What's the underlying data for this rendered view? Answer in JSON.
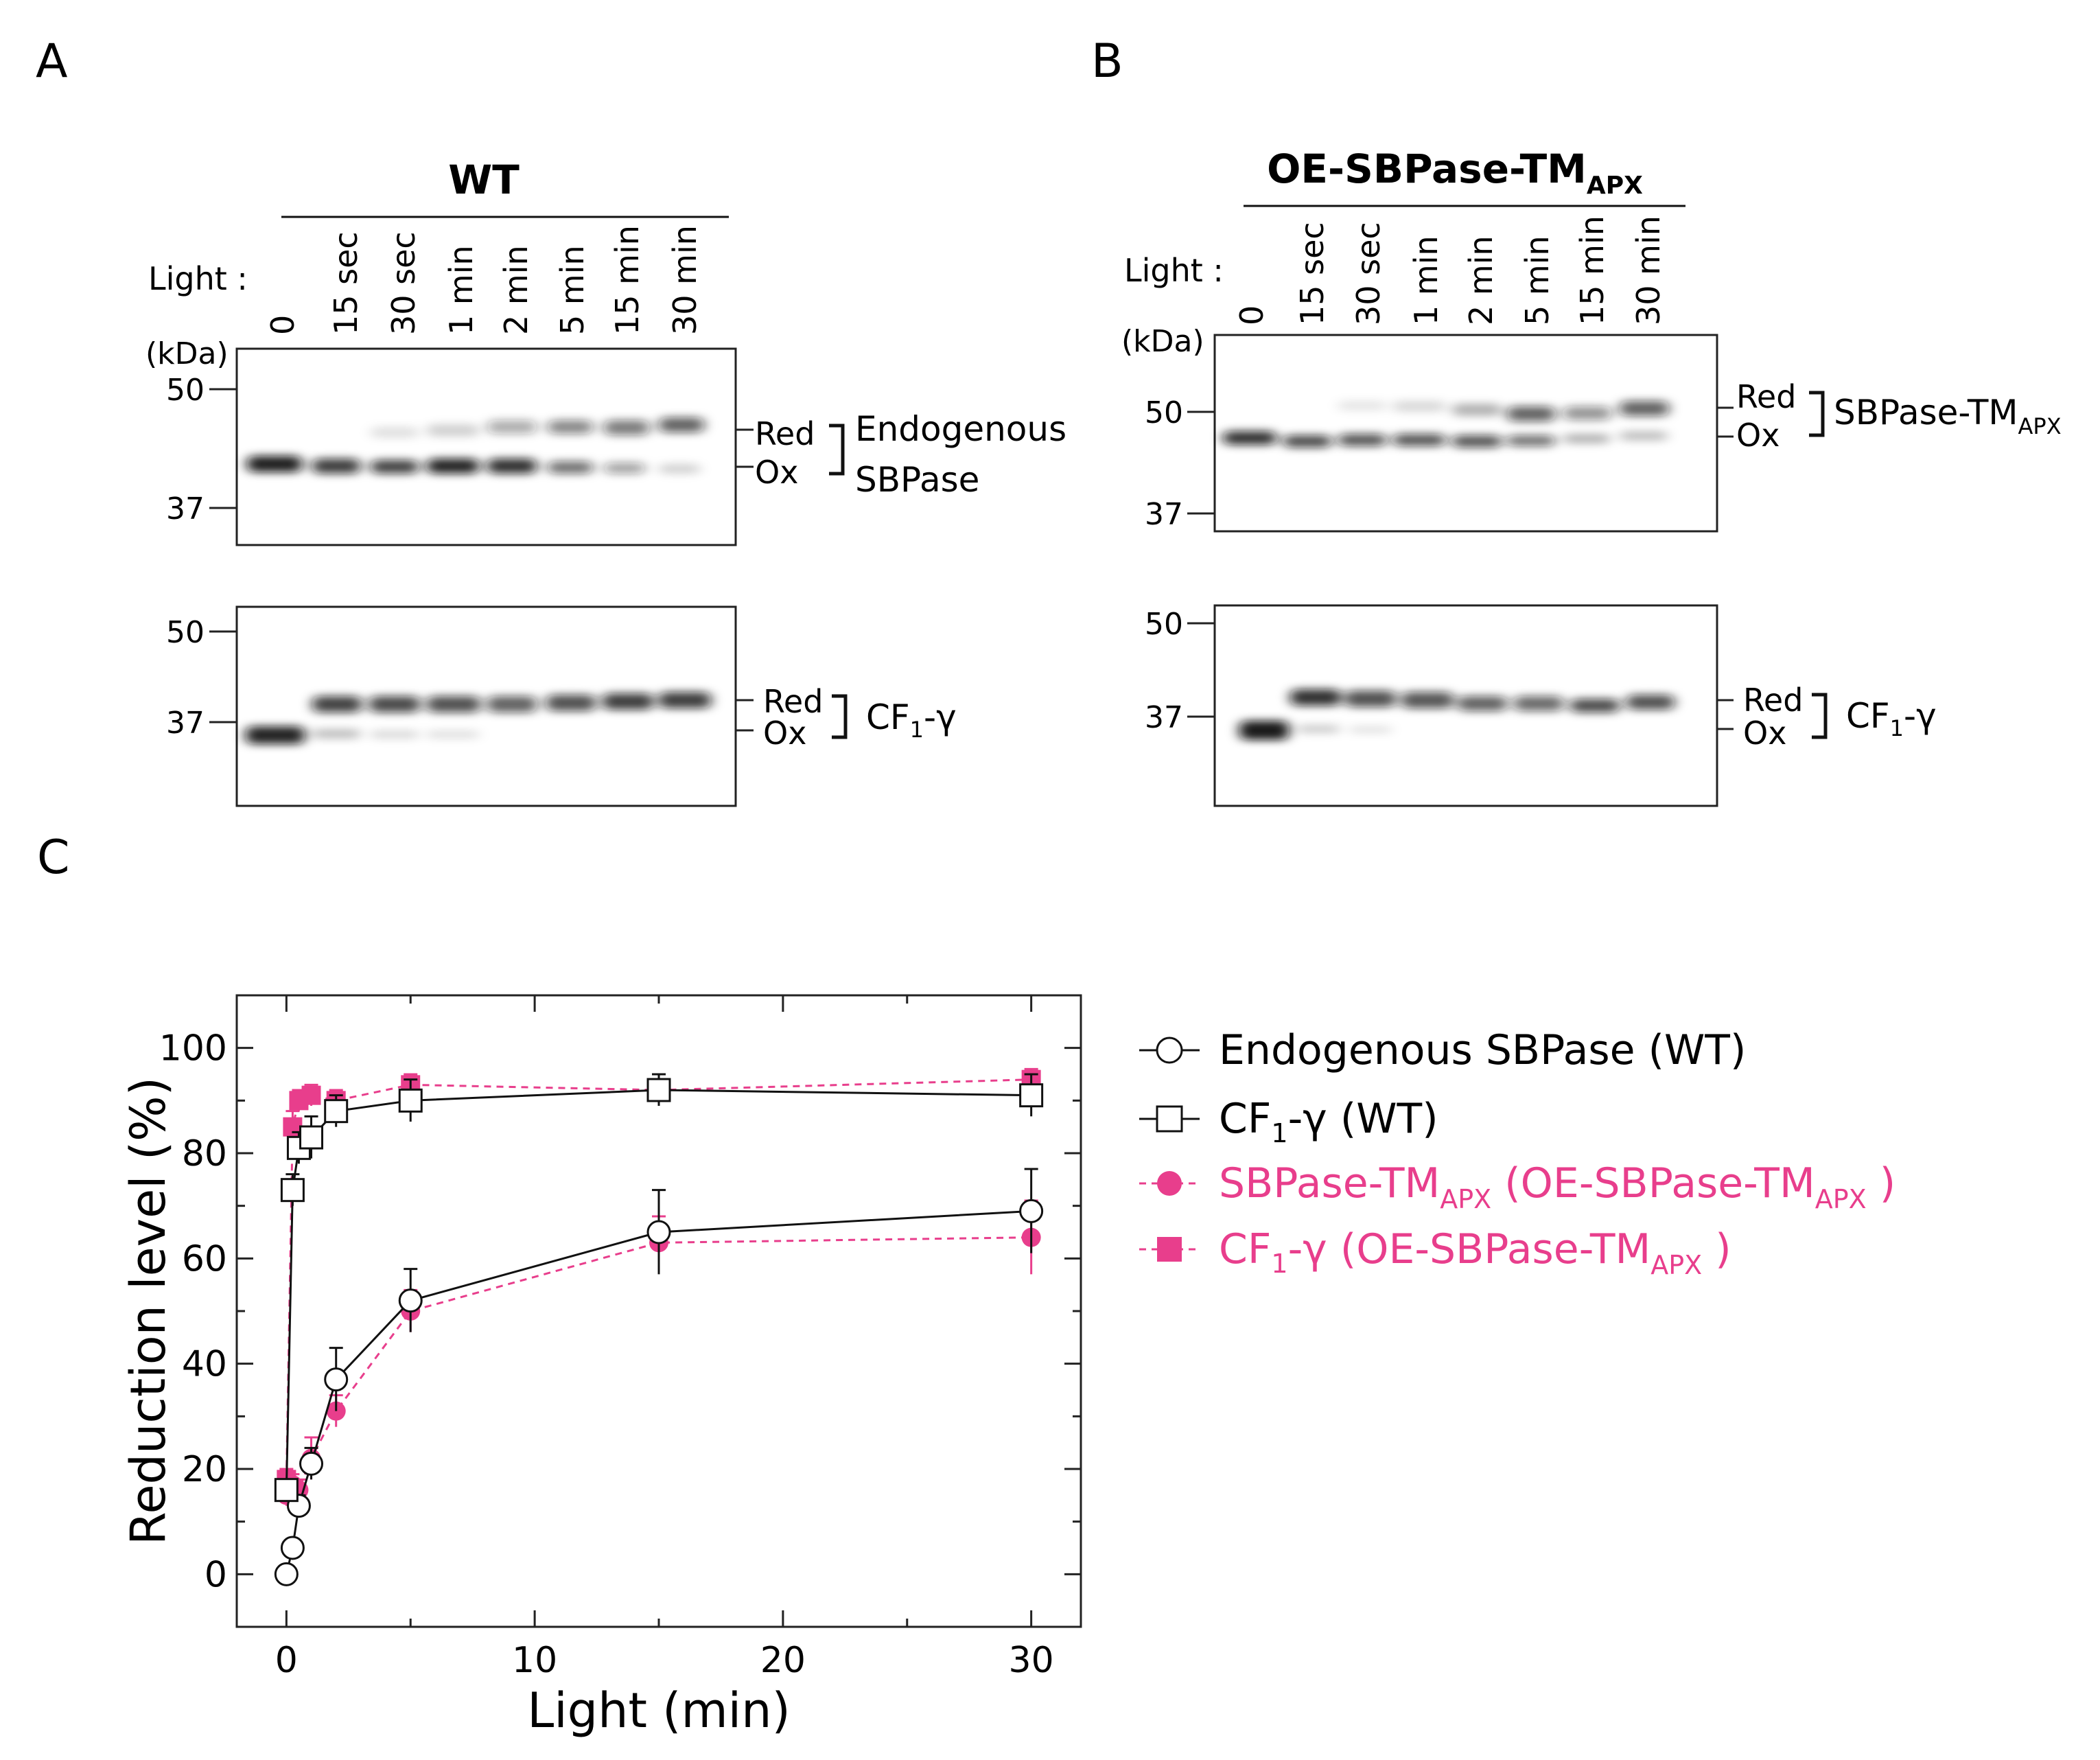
{
  "panels": {
    "A": {
      "letter": "A",
      "title": "WT",
      "light_label": "Light :",
      "kda_label": "(kDa)",
      "lanes": [
        "0",
        "15 sec",
        "30 sec",
        "1 min",
        "2 min",
        "5 min",
        "15 min",
        "30 min"
      ],
      "blot1": {
        "markers": [
          "50",
          "37"
        ],
        "red": "Red",
        "ox": "Ox",
        "protein_line1": "Endogenous",
        "protein_line2": "SBPase"
      },
      "blot2": {
        "markers": [
          "50",
          "37"
        ],
        "red": "Red",
        "ox": "Ox",
        "protein_main": "CF",
        "protein_sub": "1",
        "protein_tail": "-γ"
      }
    },
    "B": {
      "letter": "B",
      "title_main": "OE-SBPase-TM",
      "title_sub": "APX",
      "light_label": "Light :",
      "kda_label": "(kDa)",
      "lanes": [
        "0",
        "15 sec",
        "30 sec",
        "1 min",
        "2 min",
        "5 min",
        "15 min",
        "30 min"
      ],
      "blot1": {
        "markers": [
          "50",
          "37"
        ],
        "red": "Red",
        "ox": "Ox",
        "protein_main": "SBPase-TM",
        "protein_sub": "APX"
      },
      "blot2": {
        "markers": [
          "50",
          "37"
        ],
        "red": "Red",
        "ox": "Ox",
        "protein_main": "CF",
        "protein_sub": "1",
        "protein_tail": "-γ"
      }
    },
    "C": {
      "letter": "C"
    }
  },
  "legend": {
    "item1": "Endogenous SBPase (WT)",
    "item2_main": "CF",
    "item2_sub": "1",
    "item2_tail": "-γ (WT)",
    "item3_a": "SBPase-TM",
    "item3_sub1": "APX",
    "item3_b": " (OE-SBPase-TM",
    "item3_sub2": "APX",
    "item3_c": " )",
    "item4_a": "CF",
    "item4_sub1": "1",
    "item4_b": "-γ (OE-SBPase-TM",
    "item4_sub2": "APX",
    "item4_c": " )"
  },
  "colors": {
    "pink": "#e83e8c",
    "black": "#111111"
  },
  "chart_data": {
    "type": "line",
    "xlabel": "Light (min)",
    "ylabel": "Reduction level (%)",
    "xlim": [
      -2,
      32
    ],
    "ylim": [
      -10,
      110
    ],
    "xticks": [
      0,
      10,
      20,
      30
    ],
    "yticks": [
      0,
      20,
      40,
      60,
      80,
      100
    ],
    "series": [
      {
        "name": "Endogenous SBPase (WT)",
        "marker": "circle-open",
        "style": "solid",
        "x": [
          0,
          0.25,
          0.5,
          1,
          2,
          5,
          15,
          30
        ],
        "y": [
          0,
          5,
          13,
          21,
          37,
          52,
          65,
          69
        ],
        "err": [
          0,
          1,
          2,
          3,
          6,
          6,
          8,
          8
        ]
      },
      {
        "name": "CF1-γ (WT)",
        "marker": "square-open",
        "style": "solid",
        "x": [
          0,
          0.25,
          0.5,
          1,
          2,
          5,
          15,
          30
        ],
        "y": [
          16,
          73,
          81,
          83,
          88,
          90,
          92,
          91
        ],
        "err": [
          2,
          3,
          3,
          4,
          3,
          4,
          3,
          4
        ]
      },
      {
        "name": "SBPase-TMAPX (OE-SBPase-TMAPX)",
        "marker": "circle-filled",
        "style": "dashed",
        "x": [
          0,
          0.25,
          0.5,
          1,
          2,
          5,
          15,
          30
        ],
        "y": [
          15,
          17,
          16,
          22,
          31,
          50,
          63,
          64
        ],
        "err": [
          2,
          2,
          2,
          4,
          3,
          4,
          5,
          7
        ]
      },
      {
        "name": "CF1-γ (OE-SBPase-TMAPX)",
        "marker": "square-filled",
        "style": "dashed",
        "x": [
          0,
          0.25,
          0.5,
          1,
          2,
          5,
          15,
          30
        ],
        "y": [
          18,
          85,
          90,
          91,
          90,
          93,
          92,
          94
        ],
        "err": [
          2,
          3,
          2,
          2,
          2,
          2,
          2,
          2
        ]
      }
    ]
  }
}
